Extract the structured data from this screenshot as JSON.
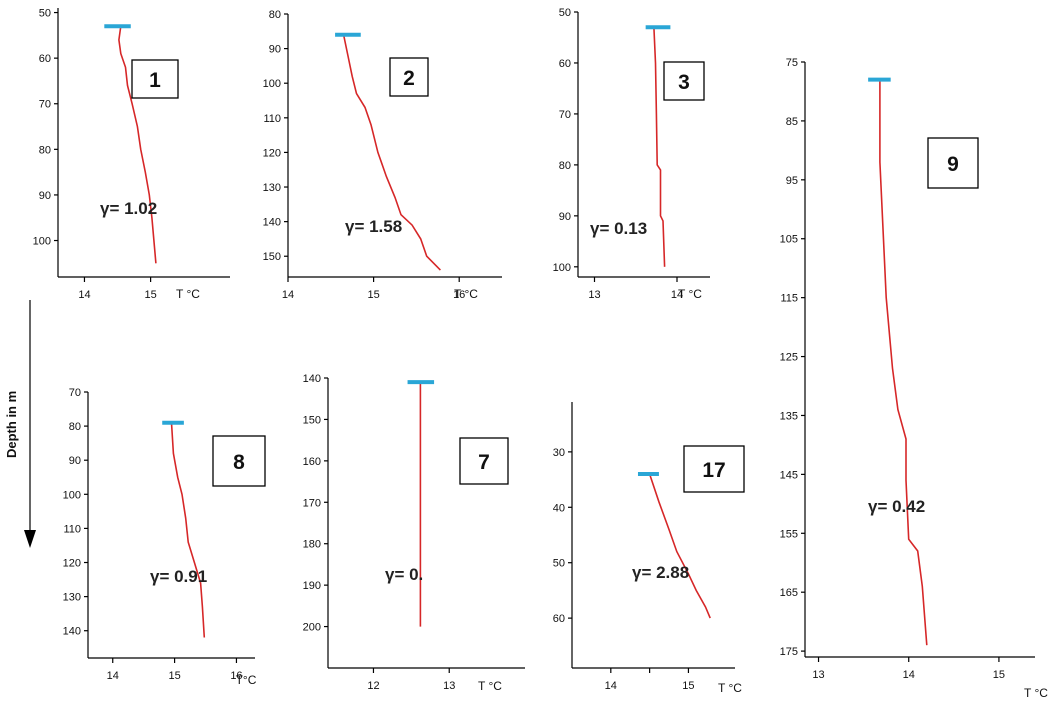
{
  "depth_label": "Depth in m",
  "colors": {
    "profile": "#d62728",
    "surface": "#2aa6d6",
    "axis": "#000000"
  },
  "chart_data": [
    {
      "id": "1",
      "type": "line",
      "badge": "1",
      "gamma": "γ= 1.02",
      "xunit": "T °C",
      "xticks": [
        14,
        15
      ],
      "yticks": [
        50,
        60,
        70,
        80,
        90,
        100
      ],
      "xlim": [
        13.6,
        16.2
      ],
      "ylim": [
        49,
        108
      ],
      "surface": {
        "t1": 14.3,
        "t2": 14.7,
        "depth": 53
      },
      "points": [
        [
          14.55,
          53
        ],
        [
          14.52,
          56
        ],
        [
          14.55,
          59
        ],
        [
          14.62,
          62
        ],
        [
          14.65,
          66
        ],
        [
          14.72,
          70
        ],
        [
          14.8,
          75
        ],
        [
          14.85,
          80
        ],
        [
          14.92,
          85
        ],
        [
          14.98,
          90
        ],
        [
          15.02,
          95
        ],
        [
          15.05,
          100
        ],
        [
          15.08,
          105
        ]
      ]
    },
    {
      "id": "2",
      "type": "line",
      "badge": "2",
      "gamma": "γ= 1.58",
      "xunit": "T °C",
      "xticks": [
        14,
        15,
        16
      ],
      "yticks": [
        80,
        90,
        100,
        110,
        120,
        130,
        140,
        150
      ],
      "xlim": [
        14,
        16.5
      ],
      "ylim": [
        80,
        156
      ],
      "surface": {
        "t1": 14.55,
        "t2": 14.85,
        "depth": 86
      },
      "points": [
        [
          14.65,
          86
        ],
        [
          14.7,
          92
        ],
        [
          14.75,
          98
        ],
        [
          14.8,
          103
        ],
        [
          14.9,
          107
        ],
        [
          14.97,
          112
        ],
        [
          15.05,
          120
        ],
        [
          15.15,
          127
        ],
        [
          15.25,
          133
        ],
        [
          15.32,
          138
        ],
        [
          15.45,
          141
        ],
        [
          15.55,
          145
        ],
        [
          15.62,
          150
        ],
        [
          15.78,
          154
        ]
      ]
    },
    {
      "id": "3",
      "type": "line",
      "badge": "3",
      "gamma": "γ= 0.13",
      "xunit": "T °C",
      "xticks": [
        13,
        14
      ],
      "yticks": [
        50,
        60,
        70,
        80,
        90,
        100
      ],
      "xlim": [
        12.8,
        14.4
      ],
      "ylim": [
        50,
        102
      ],
      "surface": {
        "t1": 13.62,
        "t2": 13.92,
        "depth": 53
      },
      "points": [
        [
          13.72,
          53
        ],
        [
          13.74,
          60
        ],
        [
          13.75,
          70
        ],
        [
          13.76,
          80
        ],
        [
          13.8,
          81
        ],
        [
          13.8,
          90
        ],
        [
          13.83,
          91
        ],
        [
          13.85,
          100
        ]
      ]
    },
    {
      "id": "9",
      "type": "line",
      "badge": "9",
      "gamma": "γ= 0.42",
      "xunit": "T °C",
      "xticks": [
        13,
        14,
        15
      ],
      "yticks": [
        75,
        85,
        95,
        105,
        115,
        125,
        135,
        145,
        155,
        165,
        175
      ],
      "xlim": [
        12.85,
        15.4
      ],
      "ylim": [
        75,
        176
      ],
      "surface": {
        "t1": 13.55,
        "t2": 13.8,
        "depth": 78
      },
      "points": [
        [
          13.68,
          78
        ],
        [
          13.68,
          92
        ],
        [
          13.75,
          115
        ],
        [
          13.82,
          127
        ],
        [
          13.88,
          134
        ],
        [
          13.97,
          139
        ],
        [
          13.97,
          146
        ],
        [
          14.0,
          156
        ],
        [
          14.1,
          158
        ],
        [
          14.15,
          164
        ],
        [
          14.2,
          174
        ]
      ]
    },
    {
      "id": "8",
      "type": "line",
      "badge": "8",
      "gamma": "γ= 0.91",
      "xunit": "T°C",
      "xticks": [
        14,
        15,
        16
      ],
      "yticks": [
        70,
        80,
        90,
        100,
        110,
        120,
        130,
        140
      ],
      "xlim": [
        13.6,
        16.3
      ],
      "ylim": [
        70,
        148
      ],
      "surface": {
        "t1": 14.8,
        "t2": 15.15,
        "depth": 79
      },
      "points": [
        [
          14.95,
          79
        ],
        [
          14.98,
          88
        ],
        [
          15.05,
          95
        ],
        [
          15.12,
          100
        ],
        [
          15.18,
          107
        ],
        [
          15.22,
          114
        ],
        [
          15.32,
          120
        ],
        [
          15.42,
          126
        ],
        [
          15.45,
          133
        ],
        [
          15.48,
          142
        ]
      ]
    },
    {
      "id": "7",
      "type": "line",
      "badge": "7",
      "gamma": "γ= 0.",
      "xunit": "T °C",
      "xticks": [
        12,
        13
      ],
      "yticks": [
        140,
        150,
        160,
        170,
        180,
        190,
        200
      ],
      "xlim": [
        11.4,
        14.0
      ],
      "ylim": [
        140,
        210
      ],
      "surface": {
        "t1": 12.45,
        "t2": 12.8,
        "depth": 141
      },
      "points": [
        [
          12.62,
          141
        ],
        [
          12.62,
          200
        ]
      ]
    },
    {
      "id": "17",
      "type": "line",
      "badge": "17",
      "gamma": "γ= 2.88",
      "xunit": "T °C",
      "xticks": [
        14,
        14.5,
        15
      ],
      "xticklabels": [
        "14",
        "",
        "15"
      ],
      "yticks": [
        30,
        40,
        50,
        60
      ],
      "xlim": [
        13.5,
        15.6
      ],
      "ylim": [
        21,
        69
      ],
      "surface": {
        "t1": 14.35,
        "t2": 14.62,
        "depth": 34
      },
      "points": [
        [
          14.5,
          34
        ],
        [
          14.62,
          39
        ],
        [
          14.75,
          44
        ],
        [
          14.85,
          48
        ],
        [
          15.0,
          52
        ],
        [
          15.1,
          55
        ],
        [
          15.22,
          58
        ],
        [
          15.28,
          60
        ]
      ]
    }
  ]
}
